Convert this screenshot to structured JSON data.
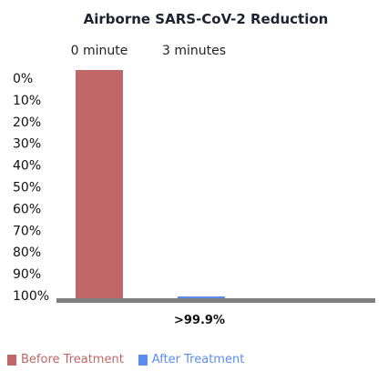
{
  "chart_data": {
    "type": "bar",
    "title": "Airborne SARS-CoV-2 Reduction",
    "categories": [
      "0 minute",
      "3 minutes"
    ],
    "series": [
      {
        "name": "Before Treatment",
        "values": [
          0,
          null
        ],
        "color": "#c06666"
      },
      {
        "name": "After Treatment",
        "values": [
          null,
          99.95
        ],
        "color": "#5b8def"
      }
    ],
    "y_ticks": [
      "0%",
      "10%",
      "20%",
      "30%",
      "40%",
      "50%",
      "60%",
      "70%",
      "80%",
      "90%",
      "100%"
    ],
    "ylim": [
      0,
      100
    ],
    "y_inverted": true,
    "annotation": ">99.9%",
    "legend_position": "bottom-left",
    "grid": false
  }
}
